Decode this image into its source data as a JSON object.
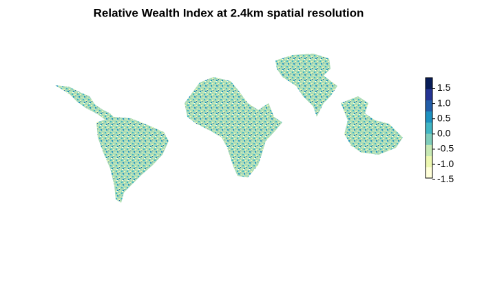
{
  "title": "Relative Wealth Index at 2.4km spatial resolution",
  "colorbar": {
    "lim": [
      -1.45,
      1.85
    ],
    "ticks": [
      1.5,
      {
        "value": 1,
        "label": "1.0"
      },
      0.5,
      {
        "value": 0,
        "label": "0.0"
      },
      -0.5,
      {
        "value": -1,
        "label": "-1.0"
      },
      -1.5
    ],
    "colors": [
      "#ffffd9",
      "#edf8b1",
      "#c7e9b4",
      "#7fcdbb",
      "#41b6c4",
      "#1d91c0",
      "#225ea8",
      "#253494",
      "#081d58"
    ]
  }
}
